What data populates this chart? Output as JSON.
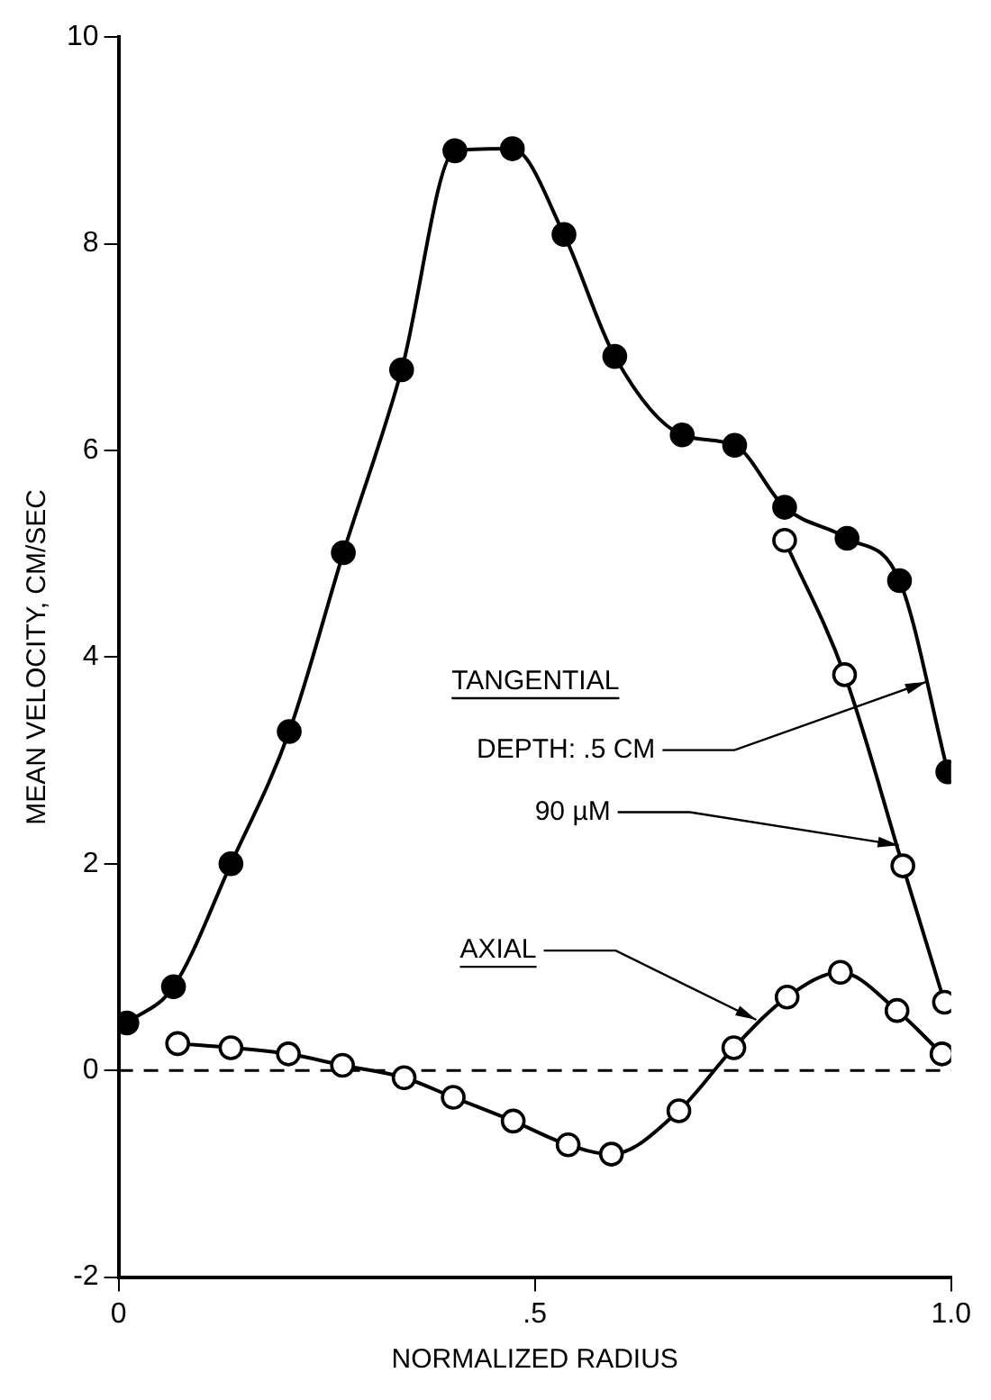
{
  "chart_data": {
    "type": "line",
    "xlabel": "NORMALIZED RADIUS",
    "ylabel": "MEAN VELOCITY, CM/SEC",
    "xlim": [
      0,
      1
    ],
    "ylim": [
      -2,
      10
    ],
    "xticks": [
      0,
      {
        "value": 0.5,
        "label": ".5"
      },
      {
        "value": 1,
        "label": "1.0"
      }
    ],
    "yticks": [
      -2,
      0,
      2,
      4,
      6,
      8,
      10
    ],
    "grid": false,
    "legend": false,
    "marker": "circle",
    "line_style": "solid",
    "annotations": [
      "TANGENTIAL",
      {
        "text": "DEPTH: .5 CM",
        "x": 0.97,
        "y": 3.76
      },
      {
        "text": "90 µM",
        "x": 0.937,
        "y": 2.18
      },
      {
        "text": "AXIAL",
        "x": 0.766,
        "y": 0.49
      }
    ],
    "ref_lines": [
      {
        "axis": "y",
        "value": 0,
        "line_style": "dashed",
        "color": "#000000"
      }
    ],
    "series": [
      {
        "color": "#000000",
        "x": [
          0.01,
          0.066,
          0.135,
          0.205,
          0.27,
          0.34,
          0.404,
          0.473,
          0.535,
          0.596,
          0.677,
          0.74,
          0.8,
          0.875,
          0.938,
          0.996
        ],
        "values": [
          0.46,
          0.81,
          2.0,
          3.28,
          5.01,
          6.78,
          8.9,
          8.92,
          8.09,
          6.91,
          6.15,
          6.05,
          5.45,
          5.15,
          4.74,
          2.89
        ]
      },
      {
        "color": "#000000",
        "x": [
          0.8,
          0.872,
          0.942,
          0.992
        ],
        "values": [
          5.13,
          3.83,
          1.98,
          0.66
        ]
      },
      {
        "color": "#000000",
        "x": [
          0.071,
          0.135,
          0.204,
          0.269,
          0.343,
          0.402,
          0.474,
          0.54,
          0.592,
          0.673,
          0.739,
          0.803,
          0.867,
          0.935,
          0.989
        ],
        "values": [
          0.26,
          0.22,
          0.16,
          0.05,
          -0.07,
          -0.26,
          -0.49,
          -0.72,
          -0.81,
          -0.39,
          0.22,
          0.71,
          0.95,
          0.58,
          0.16
        ]
      }
    ]
  }
}
